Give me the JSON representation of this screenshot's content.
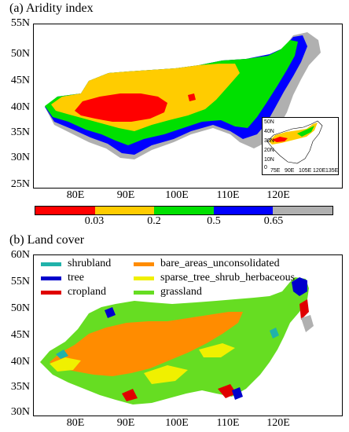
{
  "panel_a": {
    "title": "(a) Aridity index",
    "lat_labels": [
      "55N",
      "50N",
      "45N",
      "40N",
      "35N",
      "30N",
      "25N"
    ],
    "lon_labels": [
      "80E",
      "90E",
      "100E",
      "110E",
      "120E"
    ],
    "colorbar": {
      "colors": [
        "#ff0000",
        "#ffcc00",
        "#00e000",
        "#0000ff",
        "#b0b0b0"
      ],
      "tick_labels": [
        "0.03",
        "0.2",
        "0.5",
        "0.65"
      ]
    },
    "inset": {
      "lat_labels": [
        "50N",
        "40N",
        "30N",
        "20N",
        "10N",
        "0"
      ],
      "lon_labels": [
        "75E",
        "90E",
        "105E",
        "120E",
        "135E"
      ]
    }
  },
  "panel_b": {
    "title": "(b) Land cover",
    "lat_labels": [
      "60N",
      "55N",
      "50N",
      "45N",
      "40N",
      "35N",
      "30N"
    ],
    "lon_labels": [
      "80E",
      "90E",
      "100E",
      "110E",
      "120E"
    ],
    "legend": [
      {
        "label": "shrubland",
        "color": "#20b2aa"
      },
      {
        "label": "tree",
        "color": "#0000cc"
      },
      {
        "label": "cropland",
        "color": "#e00000"
      },
      {
        "label": "bare_areas_unconsolidated",
        "color": "#ff8c00"
      },
      {
        "label": "sparse_tree_shrub_herbaceous",
        "color": "#f0f000"
      },
      {
        "label": "grassland",
        "color": "#66dd22"
      }
    ]
  }
}
